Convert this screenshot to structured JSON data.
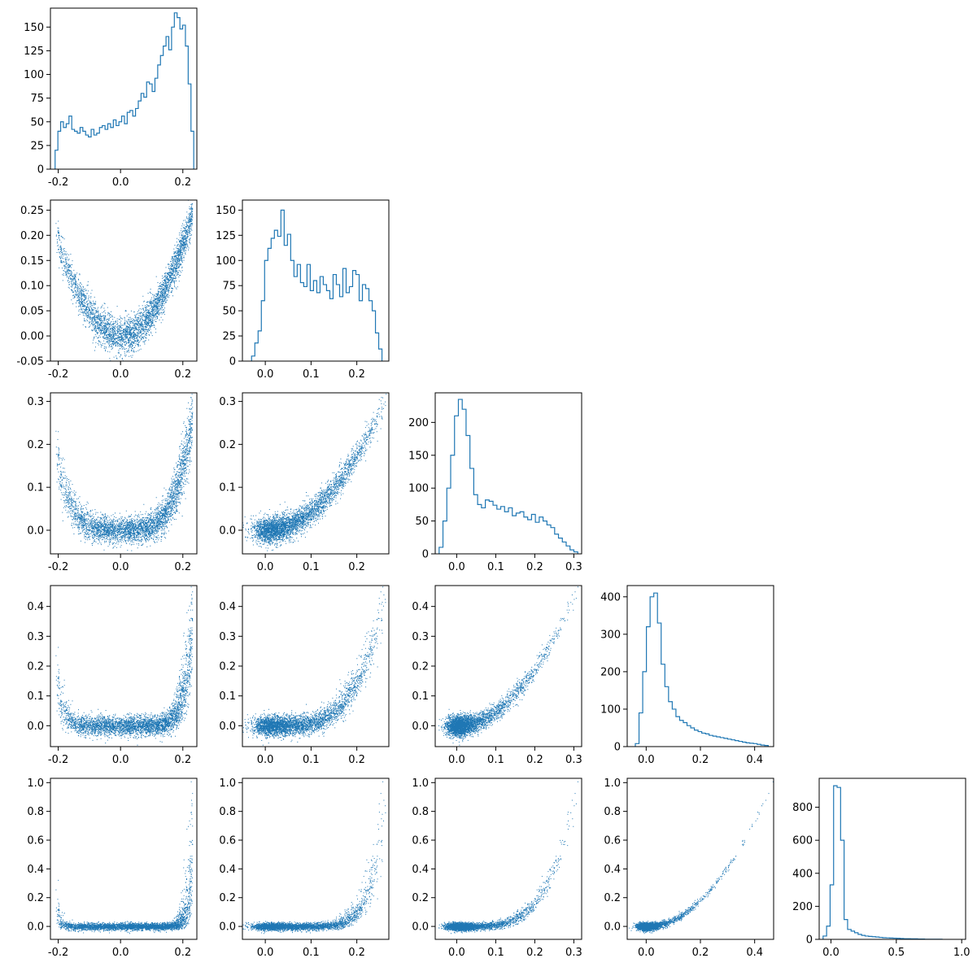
{
  "chart_data": {
    "type": "corner-plot",
    "description_of_grid": "5x5 lower-triangular pair plot: histograms on diagonal, scatter below",
    "variable_count": 5,
    "color": "#1f77b4",
    "axis_ranges": {
      "v1": [
        -0.225,
        0.245
      ],
      "v2": [
        -0.05,
        0.27
      ],
      "v3": [
        -0.055,
        0.32
      ],
      "v4": [
        -0.07,
        0.47
      ],
      "v5": [
        -0.09,
        1.03
      ]
    },
    "histogram_count_ranges": {
      "v1": [
        0,
        170
      ],
      "v2": [
        0,
        160
      ],
      "v3": [
        0,
        245
      ],
      "v4": [
        0,
        430
      ],
      "v5": [
        0,
        975
      ]
    },
    "ticks": {
      "v1": [
        "-0.2",
        "0.0",
        "0.2"
      ],
      "v2": [
        "-0.05",
        "0.00",
        "0.05",
        "0.10",
        "0.15",
        "0.20",
        "0.25"
      ],
      "v2_x": [
        "0.0",
        "0.1",
        "0.2"
      ],
      "v3": [
        "0.0",
        "0.1",
        "0.2",
        "0.3"
      ],
      "v4": [
        "0.0",
        "0.1",
        "0.2",
        "0.3",
        "0.4"
      ],
      "v4_x": [
        "0.0",
        "0.2",
        "0.4"
      ],
      "v5": [
        "0.0",
        "0.2",
        "0.4",
        "0.6",
        "0.8",
        "1.0"
      ],
      "v5_x": [
        "0.0",
        "0.5",
        "1.0"
      ]
    },
    "hist_counts_ticks": {
      "h1": [
        "0",
        "25",
        "50",
        "75",
        "100",
        "125",
        "150"
      ],
      "h2": [
        "0",
        "25",
        "50",
        "75",
        "100",
        "125",
        "150"
      ],
      "h3": [
        "0",
        "50",
        "100",
        "150",
        "200"
      ],
      "h4": [
        "0",
        "100",
        "200",
        "300",
        "400"
      ],
      "h5": [
        "0",
        "200",
        "400",
        "600",
        "800"
      ]
    },
    "histograms": [
      {
        "name": "v1",
        "bin_start": -0.21,
        "bin_end": 0.235,
        "counts": [
          20,
          40,
          50,
          44,
          48,
          56,
          42,
          40,
          38,
          44,
          40,
          36,
          34,
          42,
          36,
          38,
          44,
          46,
          42,
          48,
          44,
          52,
          46,
          50,
          56,
          48,
          60,
          62,
          56,
          64,
          72,
          80,
          76,
          92,
          90,
          82,
          96,
          110,
          120,
          130,
          140,
          126,
          150,
          165,
          160,
          148,
          152,
          130,
          90,
          40
        ]
      },
      {
        "name": "v2",
        "bin_start": -0.03,
        "bin_end": 0.255,
        "counts": [
          5,
          18,
          30,
          60,
          100,
          112,
          122,
          130,
          124,
          150,
          115,
          126,
          100,
          84,
          96,
          78,
          74,
          96,
          70,
          80,
          68,
          84,
          76,
          70,
          62,
          86,
          76,
          64,
          92,
          68,
          74,
          90,
          86,
          60,
          76,
          72,
          60,
          50,
          28,
          12
        ]
      },
      {
        "name": "v3",
        "bin_start": -0.045,
        "bin_end": 0.31,
        "counts": [
          10,
          50,
          100,
          150,
          210,
          235,
          220,
          180,
          130,
          90,
          75,
          70,
          82,
          80,
          74,
          68,
          72,
          64,
          70,
          58,
          62,
          64,
          56,
          52,
          60,
          48,
          56,
          50,
          44,
          40,
          30,
          24,
          18,
          12,
          6,
          3
        ]
      },
      {
        "name": "v4",
        "bin_start": -0.04,
        "bin_end": 0.45,
        "counts": [
          8,
          90,
          200,
          320,
          400,
          410,
          330,
          220,
          160,
          120,
          100,
          80,
          70,
          64,
          56,
          50,
          44,
          40,
          36,
          34,
          30,
          28,
          26,
          24,
          22,
          20,
          18,
          16,
          14,
          12,
          10,
          9,
          8,
          6,
          4,
          3
        ]
      },
      {
        "name": "v5",
        "bin_start": -0.06,
        "bin_end": 0.85,
        "counts": [
          20,
          80,
          330,
          930,
          920,
          600,
          120,
          60,
          50,
          40,
          30,
          24,
          20,
          18,
          16,
          14,
          12,
          10,
          9,
          8,
          7,
          6,
          5,
          4,
          4,
          3,
          3,
          2,
          2,
          1,
          1,
          1,
          1,
          1
        ]
      }
    ],
    "scatter_relationships": [
      {
        "x": "v1",
        "y": "v2",
        "shape": "parabola",
        "y_at_min": 0.01,
        "y_at_ends": 0.23
      },
      {
        "x": "v1",
        "y": "v3",
        "shape": "u-shaped",
        "y_at_min": 0.0
      },
      {
        "x": "v2",
        "y": "v3",
        "shape": "monotone-increasing"
      },
      {
        "x": "v1",
        "y": "v4",
        "shape": "flat-bottom u"
      },
      {
        "x": "v2",
        "y": "v4",
        "shape": "monotone-increasing"
      },
      {
        "x": "v3",
        "y": "v4",
        "shape": "monotone-increasing"
      },
      {
        "x": "v1",
        "y": "v5",
        "shape": "flat-bottom u"
      },
      {
        "x": "v2",
        "y": "v5",
        "shape": "monotone-increasing"
      },
      {
        "x": "v3",
        "y": "v5",
        "shape": "monotone-increasing"
      },
      {
        "x": "v4",
        "y": "v5",
        "shape": "monotone-increasing"
      }
    ]
  }
}
